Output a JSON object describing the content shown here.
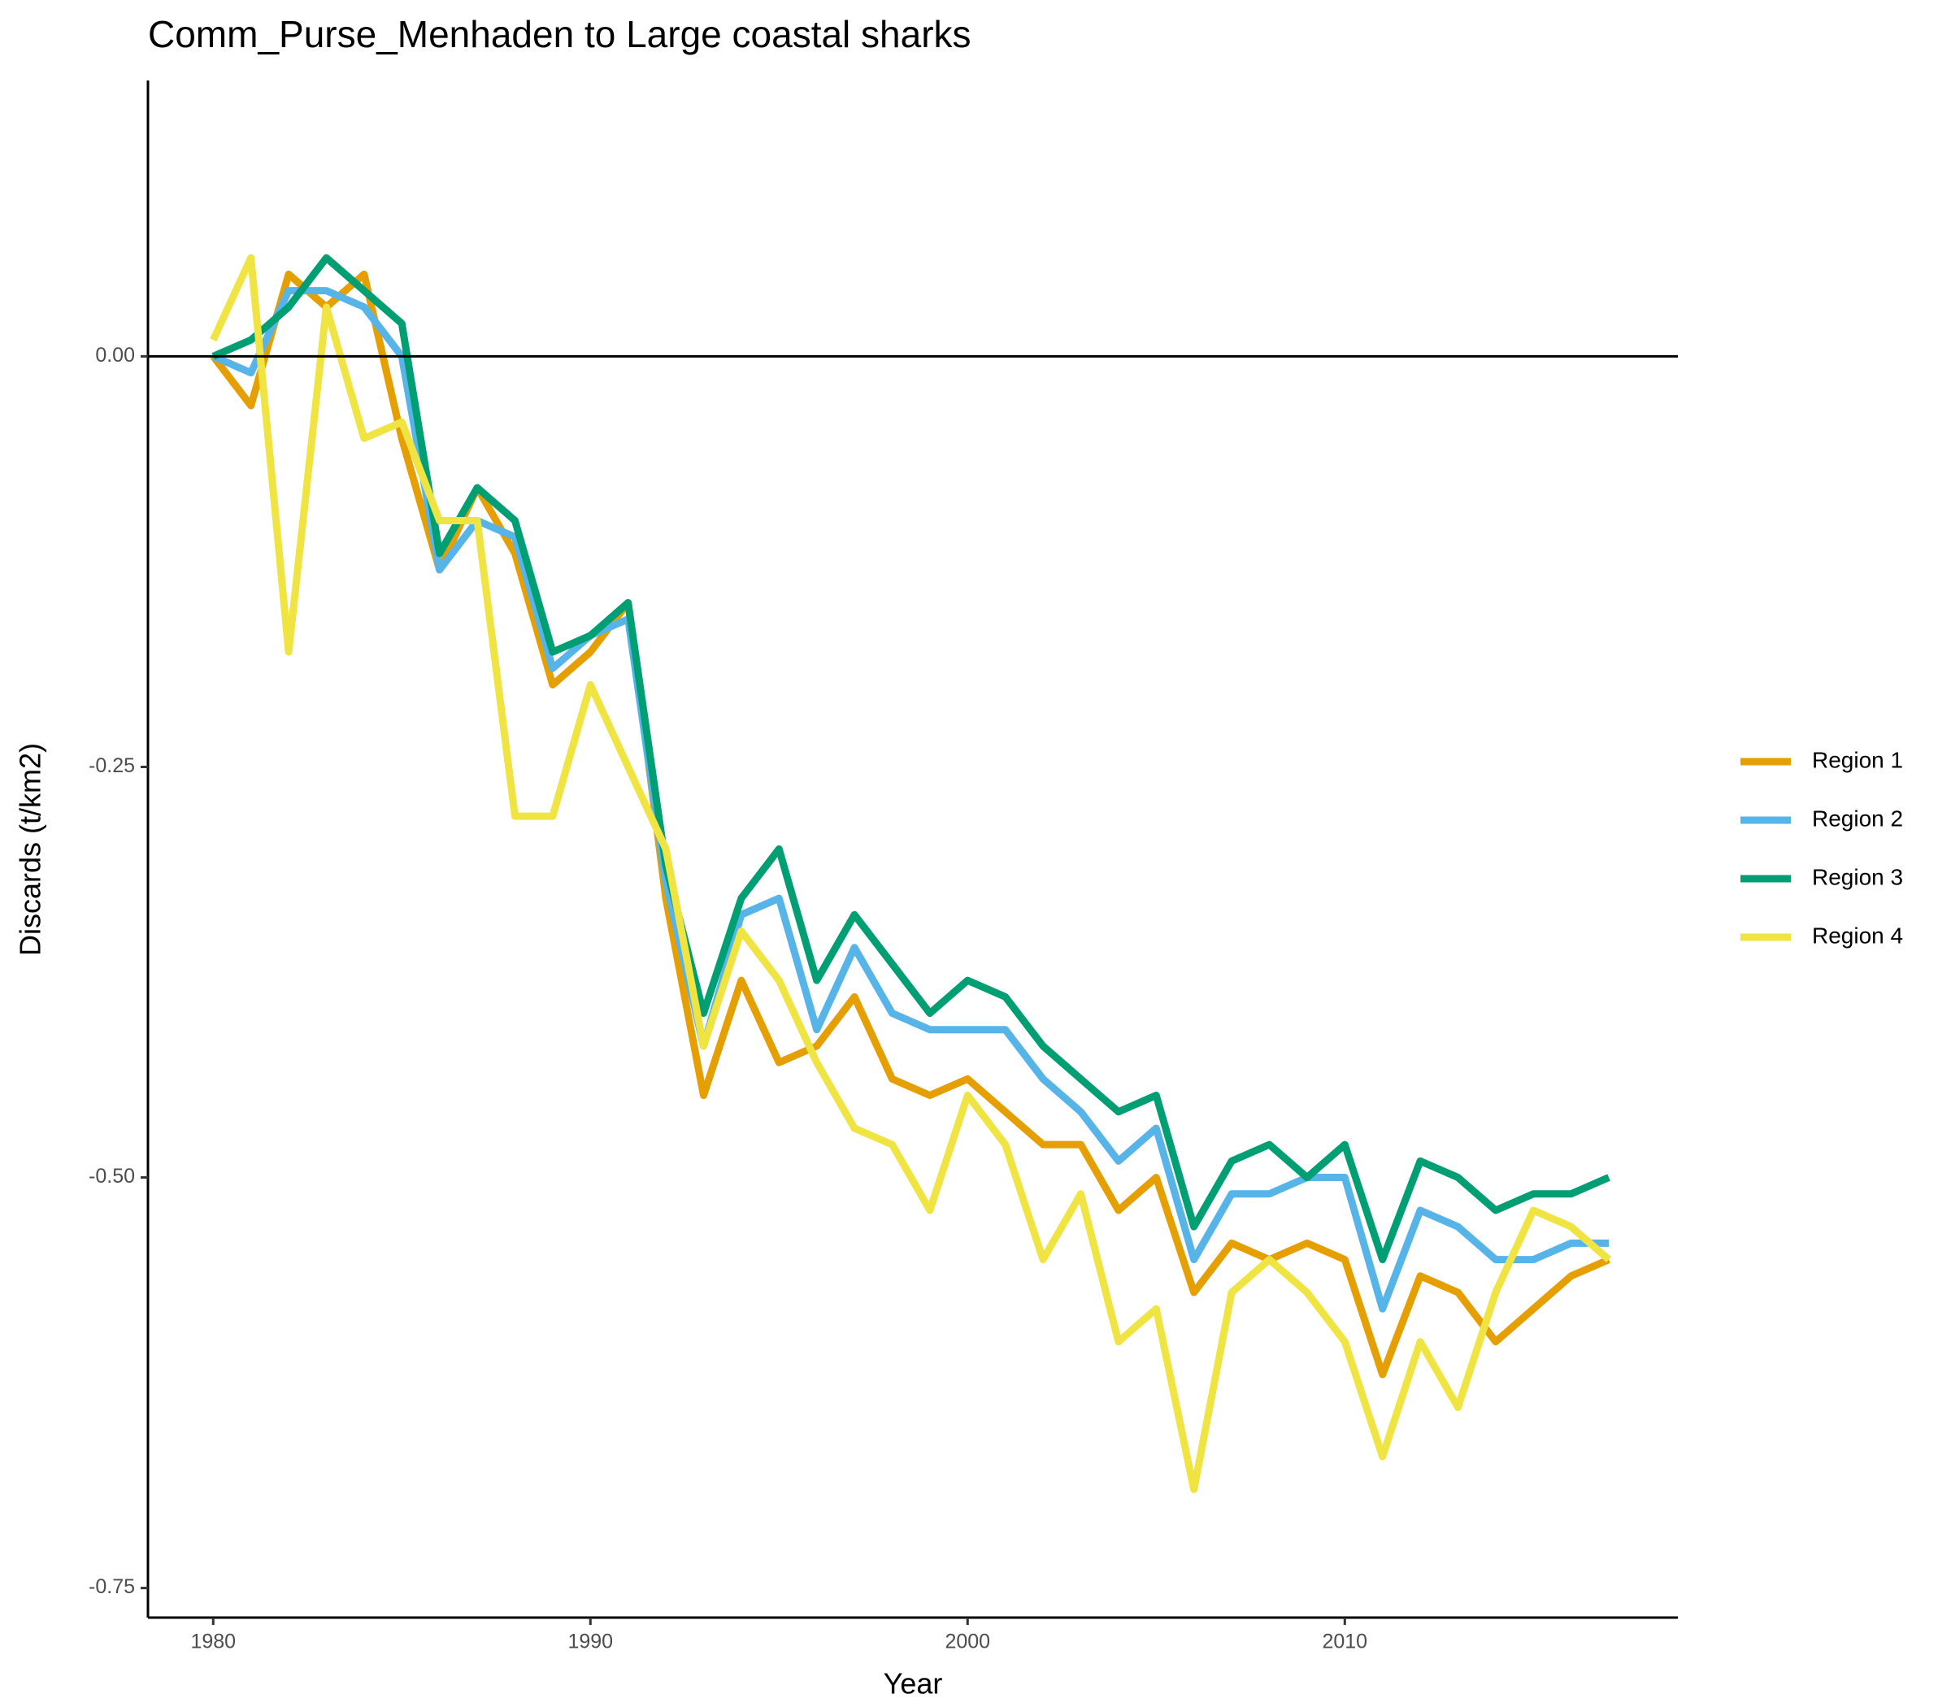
{
  "chart_data": {
    "type": "line",
    "title": "Comm_Purse_Menhaden to Large coastal sharks",
    "x_label": "Year",
    "y_label": "Discards (t/km2)",
    "x": [
      1980,
      1981,
      1982,
      1983,
      1984,
      1985,
      1986,
      1987,
      1988,
      1989,
      1990,
      1991,
      1992,
      1993,
      1994,
      1995,
      1996,
      1997,
      1998,
      1999,
      2000,
      2001,
      2002,
      2003,
      2004,
      2005,
      2006,
      2007,
      2008,
      2009,
      2010,
      2011,
      2012,
      2013,
      2014,
      2015,
      2016,
      2017
    ],
    "series": [
      {
        "name": "Region 1",
        "color": "#E69F00",
        "values": [
          0,
          -0.03,
          0.05,
          0.03,
          0.05,
          -0.05,
          -0.13,
          -0.08,
          -0.12,
          -0.2,
          -0.18,
          -0.15,
          -0.33,
          -0.45,
          -0.38,
          -0.43,
          -0.42,
          -0.39,
          -0.44,
          -0.45,
          -0.44,
          -0.46,
          -0.48,
          -0.48,
          -0.52,
          -0.5,
          -0.57,
          -0.54,
          -0.55,
          -0.54,
          -0.55,
          -0.62,
          -0.56,
          -0.57,
          -0.6,
          -0.58,
          -0.56,
          -0.55
        ]
      },
      {
        "name": "Region 2",
        "color": "#56B4E9",
        "values": [
          0,
          -0.01,
          0.04,
          0.04,
          0.03,
          0,
          -0.13,
          -0.1,
          -0.11,
          -0.19,
          -0.17,
          -0.16,
          -0.32,
          -0.42,
          -0.34,
          -0.33,
          -0.41,
          -0.36,
          -0.4,
          -0.41,
          -0.41,
          -0.41,
          -0.44,
          -0.46,
          -0.49,
          -0.47,
          -0.55,
          -0.51,
          -0.51,
          -0.5,
          -0.5,
          -0.58,
          -0.52,
          -0.53,
          -0.55,
          -0.55,
          -0.54,
          -0.54
        ]
      },
      {
        "name": "Region 3",
        "color": "#009E73",
        "values": [
          0,
          0.01,
          0.03,
          0.06,
          0.04,
          0.02,
          -0.12,
          -0.08,
          -0.1,
          -0.18,
          -0.17,
          -0.15,
          -0.31,
          -0.4,
          -0.33,
          -0.3,
          -0.38,
          -0.34,
          -0.37,
          -0.4,
          -0.38,
          -0.39,
          -0.42,
          -0.44,
          -0.46,
          -0.45,
          -0.53,
          -0.49,
          -0.48,
          -0.5,
          -0.48,
          -0.55,
          -0.49,
          -0.5,
          -0.52,
          -0.51,
          -0.51,
          -0.5
        ]
      },
      {
        "name": "Region 4",
        "color": "#F0E442",
        "values": [
          0.01,
          0.06,
          -0.18,
          0.03,
          -0.05,
          -0.04,
          -0.1,
          -0.1,
          -0.28,
          -0.28,
          -0.2,
          -0.25,
          -0.3,
          -0.42,
          -0.35,
          -0.38,
          -0.43,
          -0.47,
          -0.48,
          -0.52,
          -0.45,
          -0.48,
          -0.55,
          -0.51,
          -0.6,
          -0.58,
          -0.69,
          -0.57,
          -0.55,
          -0.57,
          -0.6,
          -0.67,
          -0.6,
          -0.64,
          -0.57,
          -0.52,
          -0.53,
          -0.55
        ]
      }
    ],
    "xlim": [
      1978.27,
      2018.83
    ],
    "ylim": [
      -0.768,
      0.168
    ],
    "xticks": [
      1980,
      1990,
      2000,
      2010
    ],
    "yticks": [
      {
        "value": -0.75,
        "label": "-0.75"
      },
      {
        "value": -0.5,
        "label": "-0.50"
      },
      {
        "value": -0.25,
        "label": "-0.25"
      },
      {
        "value": 0,
        "label": "0.00"
      }
    ],
    "reference_line": 0,
    "grid": false,
    "legend": "right"
  }
}
